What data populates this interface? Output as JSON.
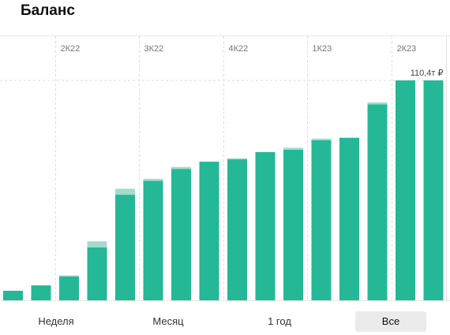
{
  "header": {
    "title": "Баланс"
  },
  "colors": {
    "bar": "#25b896",
    "bar_light": "#a3dccd",
    "grid": "#dddddd"
  },
  "chart_data": {
    "type": "bar",
    "stacked": true,
    "x_tick_labels": [
      "2К22",
      "3К22",
      "4К22",
      "1К23",
      "2К23"
    ],
    "x_tick_positions": [
      2,
      5,
      8,
      11,
      14
    ],
    "reference_line": 110.4,
    "value_annotation": {
      "bar_index": 15,
      "text": "110,4т ₽"
    },
    "ylim": [
      0,
      110.4
    ],
    "series": [
      {
        "values": [
          4.8,
          7.5,
          12.0,
          26.6,
          53.0,
          60.0,
          66.0,
          69.6,
          70.8,
          74.4,
          75.6,
          80.4,
          81.6,
          98.4,
          110.4,
          110.4
        ]
      },
      {
        "values": [
          0,
          0,
          0.5,
          3.0,
          3.0,
          1.0,
          1.0,
          0,
          0.5,
          0,
          1.0,
          0.8,
          0,
          1.0,
          0,
          0
        ]
      }
    ],
    "grid": true
  },
  "periods": [
    {
      "label": "Неделя",
      "active": false
    },
    {
      "label": "Месяц",
      "active": false
    },
    {
      "label": "1 год",
      "active": false
    },
    {
      "label": "Все",
      "active": true
    }
  ]
}
